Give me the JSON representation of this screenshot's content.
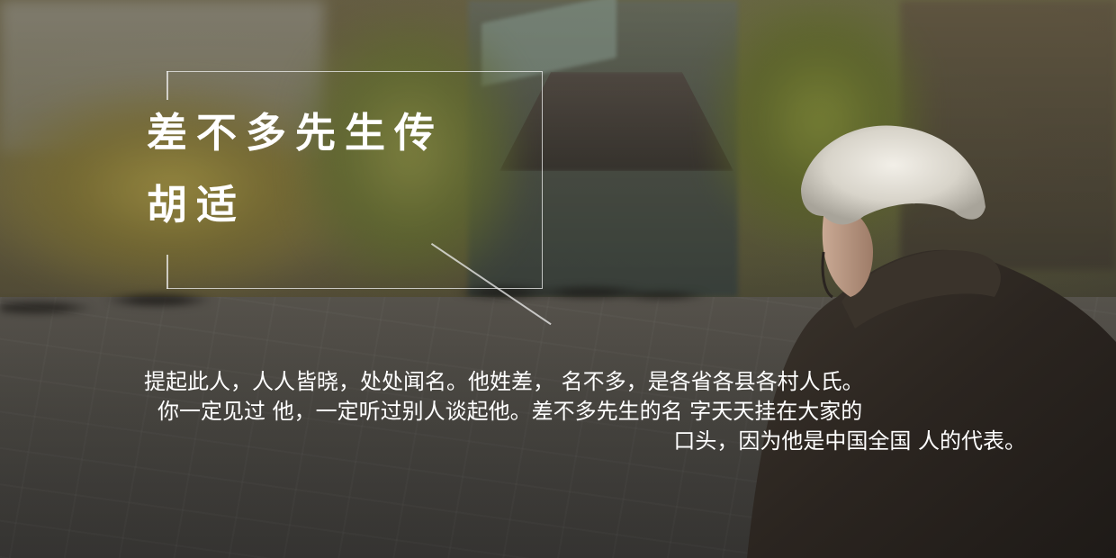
{
  "slide": {
    "title": "差不多先生传",
    "author": "胡适",
    "body": {
      "line1": "提起此人，人人皆晓，处处闻名。他姓差，  名不多，是各省各县各村人氏。",
      "line2": "你一定见过  他，一定听过别人谈起他。差不多先生的名  字天天挂在大家的",
      "line3": "口头，因为他是中国全国  人的代表。"
    },
    "colors": {
      "text": "#ffffff",
      "frame": "#f0f0f0"
    },
    "background_photo": "old-man-on-city-street"
  }
}
